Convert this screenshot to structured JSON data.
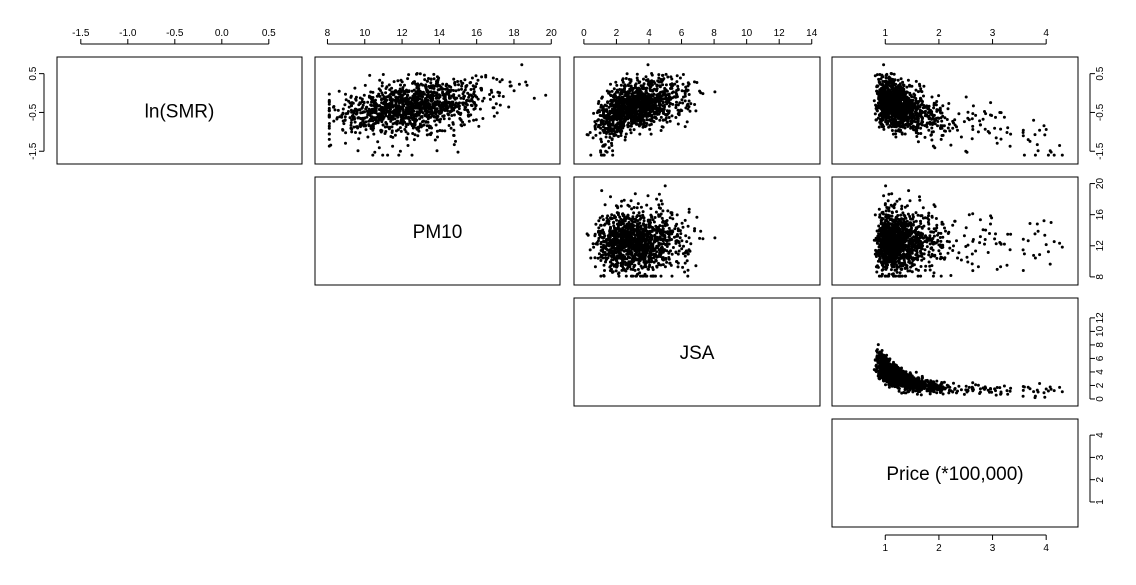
{
  "chart_data": {
    "type": "scatter",
    "layout": "scatterplot-matrix-upper-triangle",
    "variables": [
      {
        "label": "ln(SMR)",
        "range": [
          -1.7,
          0.8
        ],
        "ticks": [
          -1.5,
          -1.0,
          -0.5,
          0.0,
          0.5
        ],
        "tick_labels": [
          "-1.5",
          "-1.0",
          "-0.5",
          "0.0",
          "0.5"
        ]
      },
      {
        "label": "PM10",
        "range": [
          7.6,
          20.2
        ],
        "ticks": [
          8,
          10,
          12,
          14,
          16,
          18,
          20
        ],
        "tick_labels": [
          "8",
          "10",
          "12",
          "14",
          "16",
          "18",
          "20"
        ]
      },
      {
        "label": "JSA",
        "range": [
          -0.3,
          14.2
        ],
        "ticks": [
          0,
          2,
          4,
          6,
          8,
          10,
          12,
          14
        ],
        "tick_labels": [
          "0",
          "2",
          "4",
          "6",
          "8",
          "10",
          "12",
          "14"
        ]
      },
      {
        "label": "Price (*100,000)",
        "range": [
          0.1,
          4.5
        ],
        "ticks": [
          1,
          2,
          3,
          4
        ],
        "tick_labels": [
          "1",
          "2",
          "3",
          "4"
        ]
      }
    ],
    "y_axis_ticks_shown": {
      "0": {
        "ticks": [
          -1.5,
          -0.5,
          0.5
        ],
        "tick_labels": [
          "-1.5",
          "-0.5",
          "0.5"
        ]
      },
      "1": {
        "ticks": [
          8,
          12,
          16,
          20
        ],
        "tick_labels": [
          "8",
          "12",
          "16",
          "20"
        ]
      },
      "2": {
        "ticks": [
          0,
          2,
          4,
          6,
          8,
          10,
          12
        ],
        "tick_labels": [
          "0",
          "2",
          "4",
          "6",
          "8",
          "10",
          "12"
        ]
      },
      "3": {
        "ticks": [
          1,
          2,
          3,
          4
        ],
        "tick_labels": [
          "1",
          "2",
          "3",
          "4"
        ]
      }
    },
    "n_points": 1300,
    "relationships": {
      "ln(SMR)~PM10": "weak positive",
      "ln(SMR)~JSA": "positive concave",
      "ln(SMR)~Price": "negative",
      "PM10~JSA": "none",
      "PM10~Price": "none",
      "JSA~Price": "negative decaying"
    },
    "point_color": "#000000"
  }
}
